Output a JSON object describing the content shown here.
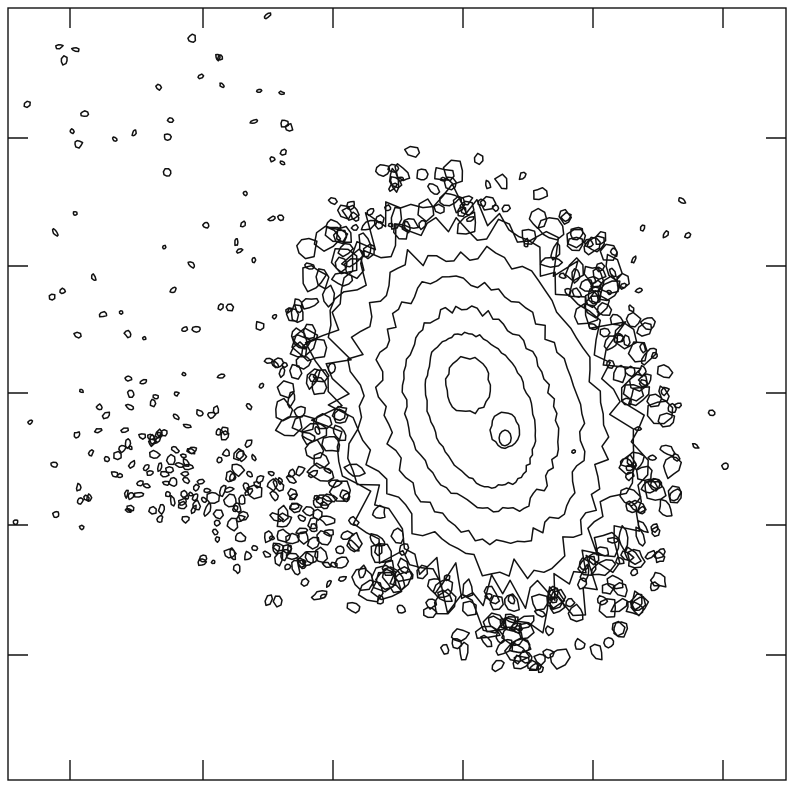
{
  "chart_data": {
    "type": "contour"
  }
}
